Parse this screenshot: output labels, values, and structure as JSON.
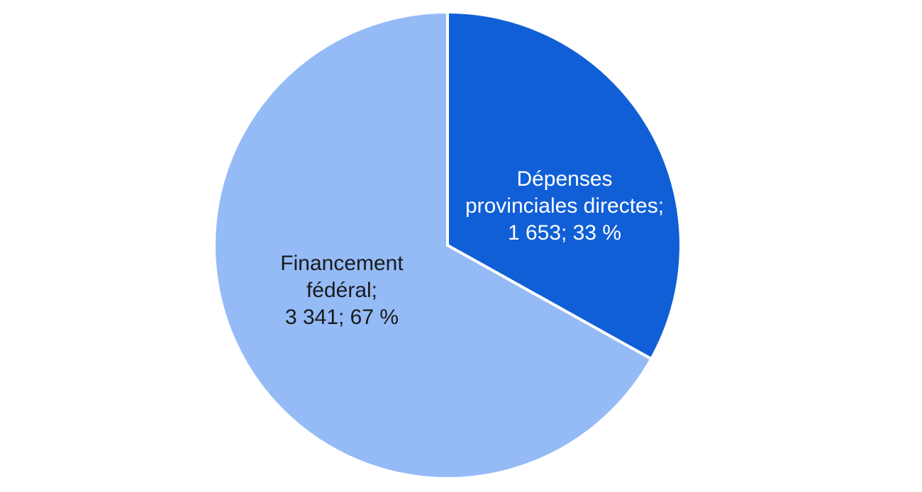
{
  "chart_data": {
    "type": "pie",
    "slices": [
      {
        "label_lines": [
          "Dépenses",
          "provinciales directes;",
          "1 653; 33 %"
        ],
        "value": 1653,
        "percent": 33,
        "color": "#115fd6",
        "text_color": "#ffffff"
      },
      {
        "label_lines": [
          "Financement",
          "fédéral;",
          "3 341; 67 %"
        ],
        "value": 3341,
        "percent": 67,
        "color": "#94bbf6",
        "text_color": "#1a1a1a"
      }
    ],
    "start_angle_deg": 0,
    "direction": "clockwise",
    "legend": "none"
  }
}
